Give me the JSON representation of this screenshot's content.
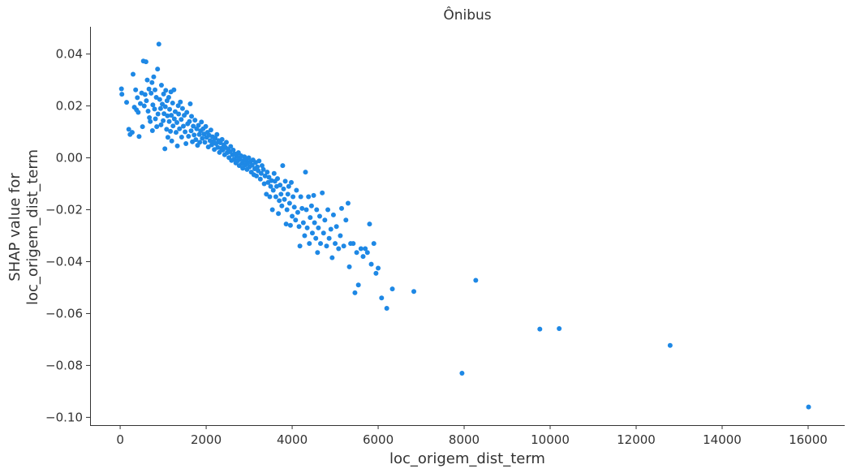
{
  "chart_data": {
    "type": "scatter",
    "title": "Ônibus",
    "xlabel": "loc_origem_dist_term",
    "ylabel_lines": [
      "SHAP value for",
      "loc_origem_dist_term"
    ],
    "xlim": [
      -700,
      16850
    ],
    "ylim": [
      -0.103,
      0.0505
    ],
    "x_ticks": [
      0,
      2000,
      4000,
      6000,
      8000,
      10000,
      12000,
      14000,
      16000
    ],
    "x_tick_labels": [
      "0",
      "2000",
      "4000",
      "6000",
      "8000",
      "10000",
      "12000",
      "14000",
      "16000"
    ],
    "y_ticks": [
      0.04,
      0.02,
      0.0,
      -0.02,
      -0.04,
      -0.06,
      -0.08,
      -0.1
    ],
    "y_tick_labels": [
      "0.04",
      "0.02",
      "0.00",
      "−0.02",
      "−0.04",
      "−0.06",
      "−0.08",
      "−0.10"
    ],
    "grid": false,
    "point_color": "#1E88E5",
    "points": [
      [
        30,
        0.0266
      ],
      [
        40,
        0.0245
      ],
      [
        150,
        0.0214
      ],
      [
        200,
        0.011
      ],
      [
        230,
        0.009
      ],
      [
        280,
        0.0098
      ],
      [
        300,
        0.0322
      ],
      [
        330,
        0.0195
      ],
      [
        360,
        0.0262
      ],
      [
        380,
        0.0185
      ],
      [
        400,
        0.0232
      ],
      [
        420,
        0.0175
      ],
      [
        440,
        0.0082
      ],
      [
        470,
        0.0209
      ],
      [
        500,
        0.025
      ],
      [
        520,
        0.012
      ],
      [
        540,
        0.0373
      ],
      [
        560,
        0.02
      ],
      [
        580,
        0.0244
      ],
      [
        600,
        0.037
      ],
      [
        610,
        0.022
      ],
      [
        630,
        0.03
      ],
      [
        650,
        0.018
      ],
      [
        670,
        0.0265
      ],
      [
        680,
        0.0155
      ],
      [
        700,
        0.014
      ],
      [
        720,
        0.0249
      ],
      [
        740,
        0.029
      ],
      [
        750,
        0.0105
      ],
      [
        760,
        0.0204
      ],
      [
        780,
        0.0312
      ],
      [
        800,
        0.0188
      ],
      [
        810,
        0.0262
      ],
      [
        820,
        0.015
      ],
      [
        840,
        0.0233
      ],
      [
        850,
        0.012
      ],
      [
        870,
        0.0342
      ],
      [
        880,
        0.0169
      ],
      [
        900,
        0.0438
      ],
      [
        920,
        0.0225
      ],
      [
        940,
        0.019
      ],
      [
        950,
        0.0127
      ],
      [
        960,
        0.028
      ],
      [
        980,
        0.0207
      ],
      [
        1000,
        0.0143
      ],
      [
        1010,
        0.0246
      ],
      [
        1020,
        0.017
      ],
      [
        1040,
        0.0035
      ],
      [
        1050,
        0.0197
      ],
      [
        1060,
        0.026
      ],
      [
        1080,
        0.011
      ],
      [
        1090,
        0.022
      ],
      [
        1100,
        0.0162
      ],
      [
        1110,
        0.0079
      ],
      [
        1130,
        0.0233
      ],
      [
        1140,
        0.014
      ],
      [
        1150,
        0.0187
      ],
      [
        1170,
        0.0102
      ],
      [
        1180,
        0.0254
      ],
      [
        1190,
        0.0164
      ],
      [
        1200,
        0.0065
      ],
      [
        1220,
        0.0211
      ],
      [
        1230,
        0.0123
      ],
      [
        1250,
        0.0262
      ],
      [
        1260,
        0.015
      ],
      [
        1280,
        0.0178
      ],
      [
        1300,
        0.0098
      ],
      [
        1320,
        0.0136
      ],
      [
        1330,
        0.0046
      ],
      [
        1350,
        0.0201
      ],
      [
        1360,
        0.0169
      ],
      [
        1380,
        0.0112
      ],
      [
        1400,
        0.0215
      ],
      [
        1420,
        0.0148
      ],
      [
        1430,
        0.008
      ],
      [
        1450,
        0.019
      ],
      [
        1470,
        0.0122
      ],
      [
        1490,
        0.0164
      ],
      [
        1510,
        0.01
      ],
      [
        1530,
        0.0055
      ],
      [
        1550,
        0.0175
      ],
      [
        1570,
        0.0131
      ],
      [
        1590,
        0.0083
      ],
      [
        1610,
        0.014
      ],
      [
        1630,
        0.0208
      ],
      [
        1650,
        0.0104
      ],
      [
        1660,
        0.016
      ],
      [
        1680,
        0.0062
      ],
      [
        1700,
        0.0122
      ],
      [
        1720,
        0.0088
      ],
      [
        1740,
        0.0145
      ],
      [
        1760,
        0.007
      ],
      [
        1780,
        0.0112
      ],
      [
        1800,
        0.0048
      ],
      [
        1820,
        0.0125
      ],
      [
        1840,
        0.009
      ],
      [
        1850,
        0.006
      ],
      [
        1870,
        0.0104
      ],
      [
        1890,
        0.0138
      ],
      [
        1910,
        0.0075
      ],
      [
        1930,
        0.0112
      ],
      [
        1950,
        0.0092
      ],
      [
        1970,
        0.006
      ],
      [
        1990,
        0.0121
      ],
      [
        2010,
        0.0079
      ],
      [
        2030,
        0.0098
      ],
      [
        2050,
        0.0042
      ],
      [
        2070,
        0.0087
      ],
      [
        2090,
        0.0066
      ],
      [
        2110,
        0.0107
      ],
      [
        2130,
        0.005
      ],
      [
        2150,
        0.0081
      ],
      [
        2170,
        0.0063
      ],
      [
        2190,
        0.0032
      ],
      [
        2210,
        0.0075
      ],
      [
        2230,
        0.0055
      ],
      [
        2250,
        0.009
      ],
      [
        2270,
        0.004
      ],
      [
        2290,
        0.0066
      ],
      [
        2310,
        0.0021
      ],
      [
        2330,
        0.0058
      ],
      [
        2350,
        0.0037
      ],
      [
        2370,
        0.0071
      ],
      [
        2390,
        0.003
      ],
      [
        2410,
        0.005
      ],
      [
        2430,
        0.0012
      ],
      [
        2450,
        0.004
      ],
      [
        2470,
        0.006
      ],
      [
        2490,
        0.002
      ],
      [
        2510,
        0.0033
      ],
      [
        2530,
        0.0001
      ],
      [
        2550,
        0.0024
      ],
      [
        2570,
        0.0044
      ],
      [
        2590,
        -0.001
      ],
      [
        2610,
        0.0012
      ],
      [
        2630,
        0.003
      ],
      [
        2650,
        -0.0005
      ],
      [
        2670,
        0.0015
      ],
      [
        2690,
        -0.002
      ],
      [
        2710,
        0.0005
      ],
      [
        2730,
        -0.0012
      ],
      [
        2750,
        0.002
      ],
      [
        2770,
        -0.003
      ],
      [
        2790,
        -0.0005
      ],
      [
        2810,
        0.0008
      ],
      [
        2830,
        -0.0022
      ],
      [
        2850,
        -0.004
      ],
      [
        2870,
        -0.0012
      ],
      [
        2890,
        0.0004
      ],
      [
        2910,
        -0.0028
      ],
      [
        2930,
        -0.001
      ],
      [
        2950,
        -0.0045
      ],
      [
        2970,
        -0.002
      ],
      [
        2990,
        0.0
      ],
      [
        3010,
        -0.0035
      ],
      [
        3030,
        -0.0015
      ],
      [
        3050,
        -0.0055
      ],
      [
        3070,
        -0.0028
      ],
      [
        3090,
        -0.0008
      ],
      [
        3110,
        -0.0065
      ],
      [
        3130,
        -0.0042
      ],
      [
        3150,
        -0.0018
      ],
      [
        3170,
        -0.007
      ],
      [
        3190,
        -0.0035
      ],
      [
        3210,
        -0.005
      ],
      [
        3230,
        -0.0012
      ],
      [
        3260,
        -0.0082
      ],
      [
        3280,
        -0.006
      ],
      [
        3300,
        -0.003
      ],
      [
        3330,
        -0.0045
      ],
      [
        3350,
        -0.01
      ],
      [
        3370,
        -0.007
      ],
      [
        3400,
        -0.014
      ],
      [
        3420,
        -0.0055
      ],
      [
        3440,
        -0.0095
      ],
      [
        3460,
        -0.0075
      ],
      [
        3480,
        -0.015
      ],
      [
        3500,
        -0.011
      ],
      [
        3520,
        -0.0088
      ],
      [
        3540,
        -0.02
      ],
      [
        3560,
        -0.0125
      ],
      [
        3580,
        -0.006
      ],
      [
        3600,
        -0.009
      ],
      [
        3620,
        -0.015
      ],
      [
        3640,
        -0.011
      ],
      [
        3660,
        -0.008
      ],
      [
        3680,
        -0.0215
      ],
      [
        3700,
        -0.0165
      ],
      [
        3720,
        -0.0105
      ],
      [
        3740,
        -0.014
      ],
      [
        3760,
        -0.0185
      ],
      [
        3780,
        -0.003
      ],
      [
        3800,
        -0.012
      ],
      [
        3820,
        -0.016
      ],
      [
        3840,
        -0.009
      ],
      [
        3860,
        -0.0255
      ],
      [
        3880,
        -0.02
      ],
      [
        3900,
        -0.014
      ],
      [
        3920,
        -0.011
      ],
      [
        3940,
        -0.0175
      ],
      [
        3960,
        -0.026
      ],
      [
        3980,
        -0.0095
      ],
      [
        4000,
        -0.0225
      ],
      [
        4020,
        -0.015
      ],
      [
        4050,
        -0.019
      ],
      [
        4080,
        -0.024
      ],
      [
        4100,
        -0.0125
      ],
      [
        4130,
        -0.021
      ],
      [
        4160,
        -0.0265
      ],
      [
        4180,
        -0.034
      ],
      [
        4200,
        -0.015
      ],
      [
        4230,
        -0.0195
      ],
      [
        4260,
        -0.025
      ],
      [
        4290,
        -0.03
      ],
      [
        4310,
        -0.0055
      ],
      [
        4330,
        -0.02
      ],
      [
        4350,
        -0.027
      ],
      [
        4380,
        -0.015
      ],
      [
        4400,
        -0.033
      ],
      [
        4420,
        -0.023
      ],
      [
        4450,
        -0.0185
      ],
      [
        4470,
        -0.029
      ],
      [
        4500,
        -0.0145
      ],
      [
        4520,
        -0.025
      ],
      [
        4550,
        -0.031
      ],
      [
        4570,
        -0.02
      ],
      [
        4590,
        -0.0365
      ],
      [
        4610,
        -0.027
      ],
      [
        4640,
        -0.0225
      ],
      [
        4660,
        -0.033
      ],
      [
        4700,
        -0.0135
      ],
      [
        4730,
        -0.029
      ],
      [
        4760,
        -0.024
      ],
      [
        4800,
        -0.034
      ],
      [
        4830,
        -0.02
      ],
      [
        4860,
        -0.031
      ],
      [
        4900,
        -0.0275
      ],
      [
        4930,
        -0.0385
      ],
      [
        4960,
        -0.022
      ],
      [
        5000,
        -0.033
      ],
      [
        5030,
        -0.0265
      ],
      [
        5080,
        -0.035
      ],
      [
        5120,
        -0.03
      ],
      [
        5150,
        -0.0195
      ],
      [
        5200,
        -0.034
      ],
      [
        5250,
        -0.024
      ],
      [
        5300,
        -0.0175
      ],
      [
        5330,
        -0.042
      ],
      [
        5360,
        -0.033
      ],
      [
        5420,
        -0.033
      ],
      [
        5460,
        -0.052
      ],
      [
        5500,
        -0.0365
      ],
      [
        5540,
        -0.049
      ],
      [
        5600,
        -0.035
      ],
      [
        5650,
        -0.038
      ],
      [
        5700,
        -0.035
      ],
      [
        5750,
        -0.0365
      ],
      [
        5800,
        -0.0255
      ],
      [
        5840,
        -0.041
      ],
      [
        5900,
        -0.033
      ],
      [
        5950,
        -0.0445
      ],
      [
        6000,
        -0.0425
      ],
      [
        6080,
        -0.054
      ],
      [
        6200,
        -0.058
      ],
      [
        6330,
        -0.0505
      ],
      [
        6830,
        -0.0515
      ],
      [
        7950,
        -0.083
      ],
      [
        8270,
        -0.0472
      ],
      [
        9760,
        -0.066
      ],
      [
        10210,
        -0.0658
      ],
      [
        12790,
        -0.0723
      ],
      [
        16010,
        -0.096
      ]
    ]
  }
}
